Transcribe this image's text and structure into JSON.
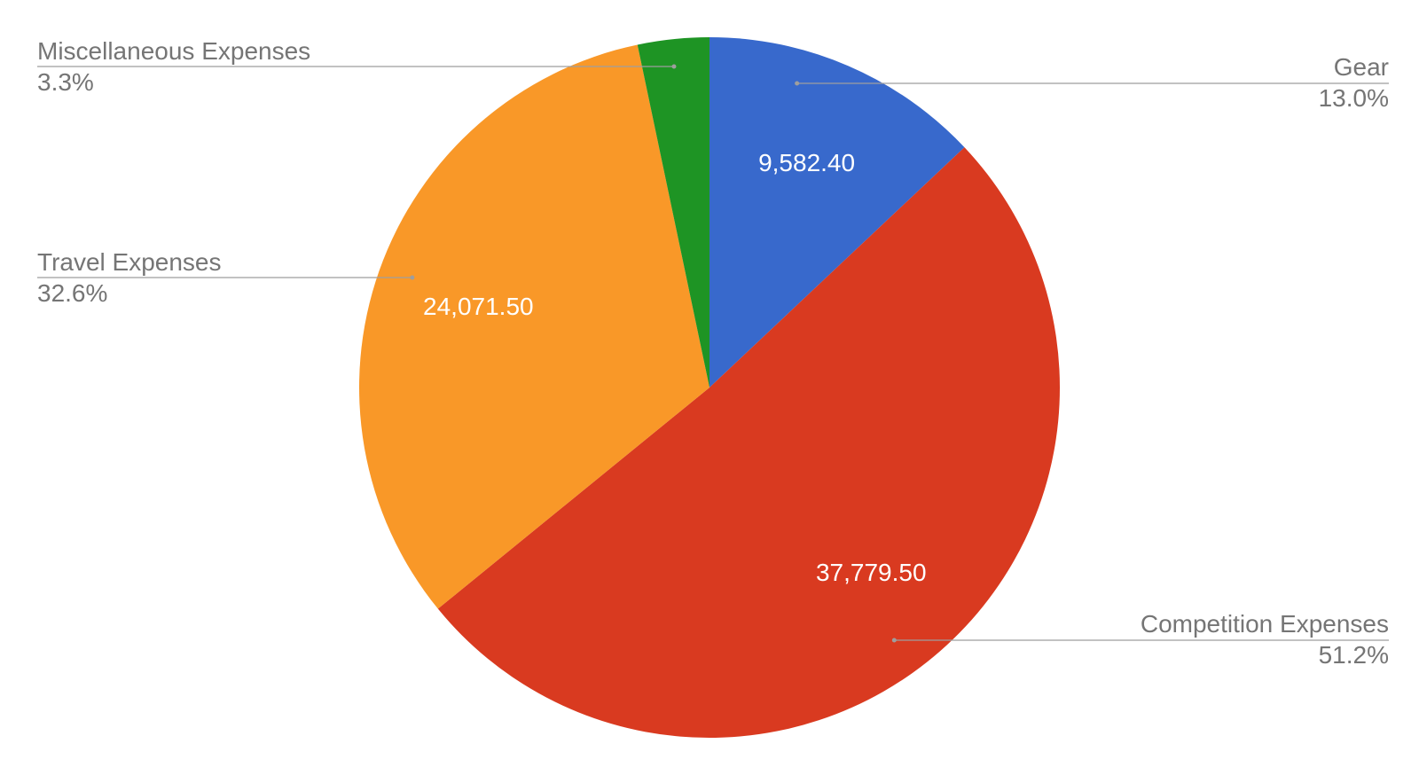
{
  "chart_data": {
    "type": "pie",
    "title": "",
    "start": "12 o'clock, clockwise",
    "slices": [
      {
        "name": "Gear",
        "value": 9582.4,
        "value_label": "9,582.40",
        "percent_label": "13.0%",
        "color": "#3869CC",
        "show_value_label": true
      },
      {
        "name": "Competition Expenses",
        "value": 37779.5,
        "value_label": "37,779.50",
        "percent_label": "51.2%",
        "color": "#D93A20",
        "show_value_label": true
      },
      {
        "name": "Travel Expenses",
        "value": 24071.5,
        "value_label": "24,071.50",
        "percent_label": "32.6%",
        "color": "#F99828",
        "show_value_label": true
      },
      {
        "name": "Miscellaneous Expenses",
        "value": 2435.0,
        "value_label": "",
        "percent_label": "3.3%",
        "color": "#1E9424",
        "show_value_label": false
      }
    ],
    "legend": "labels with leader lines"
  }
}
